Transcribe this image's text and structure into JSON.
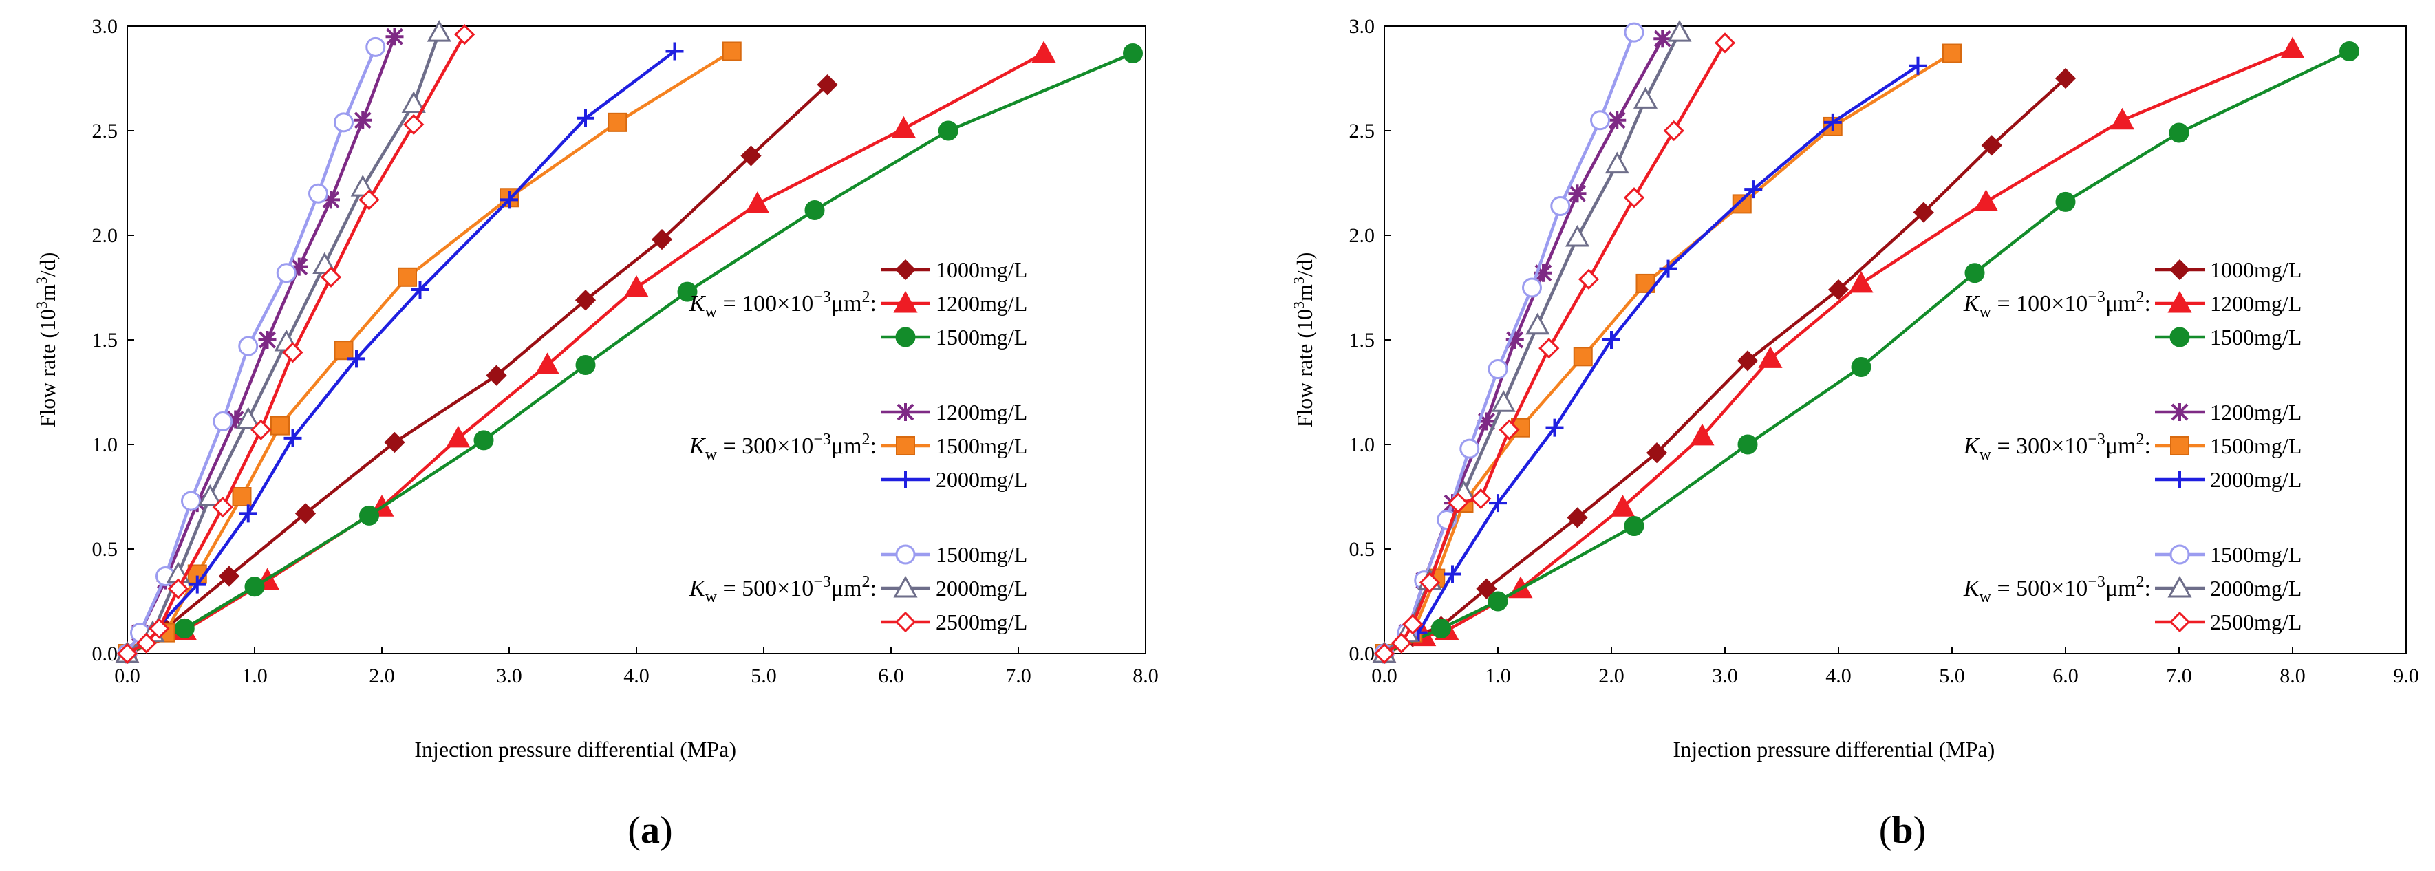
{
  "chart_data": [
    {
      "type": "line",
      "panel_label": "(a)",
      "xlabel": "Injection pressure differential (MPa)",
      "ylabel": "Flow rate (10",
      "ylabel_sup1": "3",
      "ylabel_mid": "m",
      "ylabel_sup2": "3",
      "ylabel_end": "/d)",
      "xlim": [
        0,
        8
      ],
      "ylim": [
        0,
        3
      ],
      "xticks": [
        "0.0",
        "1.0",
        "2.0",
        "3.0",
        "4.0",
        "5.0",
        "6.0",
        "7.0",
        "8.0"
      ],
      "yticks": [
        "0.0",
        "0.5",
        "1.0",
        "1.5",
        "2.0",
        "2.5",
        "3.0"
      ],
      "groups": [
        {
          "k": "K",
          "sub": "w",
          "rest": " = 100×10",
          "sup": "−3",
          "unit": "μm",
          "unitsup": "2",
          "colon": ":"
        },
        {
          "k": "K",
          "sub": "w",
          "rest": " = 300×10",
          "sup": "−3",
          "unit": "μm",
          "unitsup": "2",
          "colon": ":"
        },
        {
          "k": "K",
          "sub": "w",
          "rest": " = 500×10",
          "sup": "−3",
          "unit": "μm",
          "unitsup": "2",
          "colon": ":"
        }
      ],
      "series": [
        {
          "name": "1000mg/L",
          "group": 0,
          "color": "#9a0f14",
          "marker": "diamond",
          "x": [
            0,
            0.3,
            0.8,
            1.4,
            2.1,
            2.9,
            3.6,
            4.2,
            4.9,
            5.5
          ],
          "y": [
            0,
            0.12,
            0.37,
            0.67,
            1.01,
            1.33,
            1.69,
            1.98,
            2.38,
            2.72
          ]
        },
        {
          "name": "1200mg/L",
          "group": 0,
          "color": "#ee1c24",
          "marker": "triangle",
          "x": [
            0,
            0.45,
            1.1,
            2.0,
            2.6,
            3.3,
            4.0,
            4.95,
            6.1,
            7.2
          ],
          "y": [
            0,
            0.11,
            0.35,
            0.7,
            1.03,
            1.38,
            1.75,
            2.15,
            2.51,
            2.87
          ]
        },
        {
          "name": "1500mg/L",
          "group": 0,
          "color": "#138c2a",
          "marker": "circle",
          "x": [
            0,
            0.45,
            1.0,
            1.9,
            2.8,
            3.6,
            4.4,
            5.4,
            6.45,
            7.9
          ],
          "y": [
            0,
            0.12,
            0.32,
            0.66,
            1.02,
            1.38,
            1.73,
            2.12,
            2.5,
            2.87
          ]
        },
        {
          "name": "1200mg/L",
          "group": 1,
          "color": "#7e2a85",
          "marker": "star",
          "x": [
            0,
            0.1,
            0.3,
            0.55,
            0.85,
            1.1,
            1.35,
            1.6,
            1.85,
            2.1
          ],
          "y": [
            0,
            0.1,
            0.35,
            0.72,
            1.12,
            1.5,
            1.85,
            2.17,
            2.55,
            2.95
          ]
        },
        {
          "name": "1500mg/L",
          "group": 1,
          "color": "#f58220",
          "marker": "square",
          "x": [
            0,
            0.3,
            0.55,
            0.9,
            1.2,
            1.7,
            2.2,
            3.0,
            3.85,
            4.75
          ],
          "y": [
            0,
            0.1,
            0.38,
            0.75,
            1.09,
            1.45,
            1.8,
            2.18,
            2.54,
            2.88
          ]
        },
        {
          "name": "2000mg/L",
          "group": 1,
          "color": "#1f1fe0",
          "marker": "plus",
          "x": [
            0,
            0.2,
            0.55,
            0.95,
            1.3,
            1.8,
            2.3,
            3.0,
            3.6,
            4.3
          ],
          "y": [
            0,
            0.1,
            0.33,
            0.67,
            1.03,
            1.41,
            1.74,
            2.17,
            2.56,
            2.88
          ]
        },
        {
          "name": "1500mg/L",
          "group": 2,
          "color": "#9b9cf0",
          "marker": "circle-open",
          "x": [
            0,
            0.1,
            0.3,
            0.5,
            0.75,
            0.95,
            1.25,
            1.5,
            1.7,
            1.95
          ],
          "y": [
            0,
            0.1,
            0.37,
            0.73,
            1.11,
            1.47,
            1.82,
            2.2,
            2.54,
            2.9
          ]
        },
        {
          "name": "2000mg/L",
          "group": 2,
          "color": "#6e6e8a",
          "marker": "triangle-open",
          "x": [
            0,
            0.2,
            0.4,
            0.65,
            0.95,
            1.25,
            1.55,
            1.85,
            2.25,
            2.45
          ],
          "y": [
            0,
            0.1,
            0.38,
            0.75,
            1.12,
            1.49,
            1.86,
            2.23,
            2.63,
            2.97
          ]
        },
        {
          "name": "2500mg/L",
          "group": 2,
          "color": "#ee1c24",
          "marker": "diamond-open",
          "x": [
            0,
            0.15,
            0.25,
            0.4,
            0.75,
            1.05,
            1.3,
            1.6,
            1.9,
            2.25,
            2.65
          ],
          "y": [
            0,
            0.05,
            0.12,
            0.31,
            0.7,
            1.07,
            1.44,
            1.8,
            2.17,
            2.53,
            2.96
          ]
        }
      ]
    },
    {
      "type": "line",
      "panel_label": "(b)",
      "xlabel": "Injection pressure differential (MPa)",
      "ylabel": "Flow rate (10",
      "ylabel_sup1": "3",
      "ylabel_mid": "m",
      "ylabel_sup2": "3",
      "ylabel_end": "/d)",
      "xlim": [
        0,
        9
      ],
      "ylim": [
        0,
        3
      ],
      "xticks": [
        "0.0",
        "1.0",
        "2.0",
        "3.0",
        "4.0",
        "5.0",
        "6.0",
        "7.0",
        "8.0",
        "9.0"
      ],
      "yticks": [
        "0.0",
        "0.5",
        "1.0",
        "1.5",
        "2.0",
        "2.5",
        "3.0"
      ],
      "groups": [
        {
          "k": "K",
          "sub": "w",
          "rest": " = 100×10",
          "sup": "−3",
          "unit": "μm",
          "unitsup": "2",
          "colon": ":"
        },
        {
          "k": "K",
          "sub": "w",
          "rest": " = 300×10",
          "sup": "−3",
          "unit": "μm",
          "unitsup": "2",
          "colon": ":"
        },
        {
          "k": "K",
          "sub": "w",
          "rest": " = 500×10",
          "sup": "−3",
          "unit": "μm",
          "unitsup": "2",
          "colon": ":"
        }
      ],
      "series": [
        {
          "name": "1000mg/L",
          "group": 0,
          "color": "#9a0f14",
          "marker": "diamond",
          "x": [
            0,
            0.25,
            0.5,
            0.9,
            1.7,
            2.4,
            3.2,
            4.0,
            4.75,
            5.35,
            6.0
          ],
          "y": [
            0,
            0.08,
            0.13,
            0.31,
            0.65,
            0.96,
            1.4,
            1.74,
            2.11,
            2.43,
            2.75
          ]
        },
        {
          "name": "1200mg/L",
          "group": 0,
          "color": "#ee1c24",
          "marker": "triangle",
          "x": [
            0,
            0.35,
            0.55,
            1.2,
            2.1,
            2.8,
            3.4,
            4.2,
            5.3,
            6.5,
            8.0
          ],
          "y": [
            0,
            0.08,
            0.11,
            0.31,
            0.7,
            1.04,
            1.41,
            1.77,
            2.16,
            2.55,
            2.89
          ]
        },
        {
          "name": "1500mg/L",
          "group": 0,
          "color": "#138c2a",
          "marker": "circle",
          "x": [
            0,
            0.5,
            1.0,
            2.2,
            3.2,
            4.2,
            5.2,
            6.0,
            7.0,
            8.5
          ],
          "y": [
            0,
            0.12,
            0.25,
            0.61,
            1.0,
            1.37,
            1.82,
            2.16,
            2.49,
            2.88
          ]
        },
        {
          "name": "1200mg/L",
          "group": 1,
          "color": "#7e2a85",
          "marker": "star",
          "x": [
            0,
            0.2,
            0.35,
            0.6,
            0.9,
            1.15,
            1.4,
            1.7,
            2.05,
            2.45
          ],
          "y": [
            0,
            0.1,
            0.35,
            0.72,
            1.11,
            1.5,
            1.82,
            2.2,
            2.55,
            2.94
          ]
        },
        {
          "name": "1500mg/L",
          "group": 1,
          "color": "#f58220",
          "marker": "square",
          "x": [
            0,
            0.25,
            0.45,
            0.7,
            1.2,
            1.75,
            2.3,
            3.15,
            3.95,
            5.0
          ],
          "y": [
            0,
            0.1,
            0.36,
            0.72,
            1.08,
            1.42,
            1.77,
            2.15,
            2.52,
            2.87
          ]
        },
        {
          "name": "2000mg/L",
          "group": 1,
          "color": "#1f1fe0",
          "marker": "plus",
          "x": [
            0,
            0.3,
            0.6,
            1.0,
            1.5,
            2.0,
            2.5,
            3.25,
            3.95,
            4.7
          ],
          "y": [
            0,
            0.1,
            0.38,
            0.72,
            1.08,
            1.5,
            1.84,
            2.22,
            2.54,
            2.81
          ]
        },
        {
          "name": "1500mg/L",
          "group": 2,
          "color": "#9b9cf0",
          "marker": "circle-open",
          "x": [
            0,
            0.2,
            0.35,
            0.55,
            0.75,
            1.0,
            1.3,
            1.55,
            1.9,
            2.2
          ],
          "y": [
            0,
            0.1,
            0.35,
            0.64,
            0.98,
            1.36,
            1.75,
            2.14,
            2.55,
            2.97
          ]
        },
        {
          "name": "2000mg/L",
          "group": 2,
          "color": "#6e6e8a",
          "marker": "triangle-open",
          "x": [
            0,
            0.2,
            0.4,
            0.7,
            1.05,
            1.35,
            1.7,
            2.05,
            2.3,
            2.6
          ],
          "y": [
            0,
            0.1,
            0.35,
            0.77,
            1.2,
            1.57,
            1.99,
            2.34,
            2.65,
            2.97
          ]
        },
        {
          "name": "2500mg/L",
          "group": 2,
          "color": "#ee1c24",
          "marker": "diamond-open",
          "x": [
            0,
            0.15,
            0.25,
            0.4,
            0.65,
            0.85,
            1.1,
            1.45,
            1.8,
            2.2,
            2.55,
            3.0
          ],
          "y": [
            0,
            0.05,
            0.14,
            0.34,
            0.72,
            0.74,
            1.07,
            1.46,
            1.79,
            2.18,
            2.5,
            2.92
          ]
        }
      ]
    }
  ]
}
